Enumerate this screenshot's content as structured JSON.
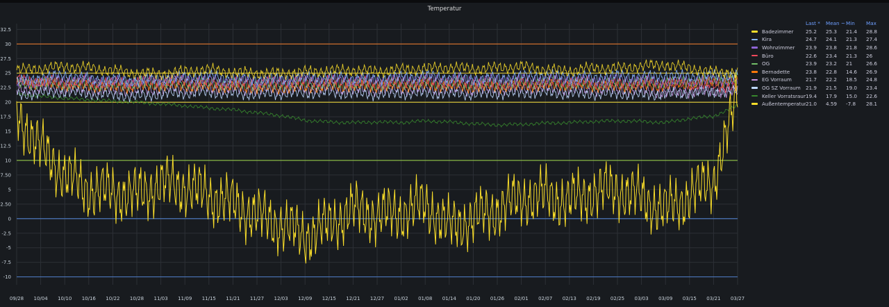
{
  "panel": {
    "title": "Temperatur"
  },
  "colors": {
    "background": "#181b1f",
    "grid": "#2c3036",
    "tick_text": "#c7d0d9",
    "legend_header": "#6e9fff"
  },
  "legend_columns": [
    "Last *",
    "Mean ~",
    "Min",
    "Max"
  ],
  "chart_data": {
    "type": "line",
    "title": "Temperatur",
    "xlabel": "",
    "ylabel": "",
    "ylim": [
      -11,
      33.5
    ],
    "grid": true,
    "legend_placement": "right",
    "xticks": [
      "09/28",
      "10/04",
      "10/10",
      "10/16",
      "10/22",
      "10/28",
      "11/03",
      "11/09",
      "11/15",
      "11/21",
      "11/27",
      "12/03",
      "12/09",
      "12/15",
      "12/21",
      "12/27",
      "01/02",
      "01/08",
      "01/14",
      "01/20",
      "01/26",
      "02/01",
      "02/07",
      "02/13",
      "02/19",
      "02/25",
      "03/03",
      "03/09",
      "03/15",
      "03/21",
      "03/27"
    ],
    "yticks": [
      "32.5",
      "30",
      "27.5",
      "25",
      "22.5",
      "20",
      "17.5",
      "15",
      "12.5",
      "10",
      "7.50",
      "5",
      "2.50",
      "0",
      "-2.5",
      "-5",
      "-7.5",
      "-10"
    ],
    "threshold_lines": [
      {
        "value": 30,
        "color": "#e0752d"
      },
      {
        "value": 25,
        "color": "#e8d23b"
      },
      {
        "value": 20,
        "color": "#e8d23b"
      },
      {
        "value": 10,
        "color": "#96c94a"
      },
      {
        "value": 0,
        "color": "#4f7ecb"
      },
      {
        "value": -10,
        "color": "#4f7ecb"
      }
    ],
    "series": [
      {
        "name": "Badezimmer",
        "color": "#fade2a",
        "last": "25.2",
        "mean": "25.3",
        "min": "21.4",
        "max": "28.8",
        "values": [
          25.5,
          25.8,
          26.1,
          25.9,
          25.4,
          25.0,
          24.8,
          25.3,
          25.6,
          25.1,
          25.0,
          24.9,
          25.2,
          25.4,
          25.5,
          25.3,
          25.6,
          25.8,
          26.0,
          25.7,
          25.9,
          26.1,
          25.6,
          25.4,
          25.9,
          25.8,
          26.2,
          26.4,
          25.9,
          25.1,
          25.2
        ]
      },
      {
        "name": "Kira",
        "color": "#8ab8ff",
        "last": "24.7",
        "mean": "24.1",
        "min": "21.3",
        "max": "27.4",
        "values": [
          23.5,
          24.2,
          24.6,
          24.0,
          23.8,
          23.7,
          24.0,
          24.3,
          24.5,
          24.1,
          23.9,
          24.0,
          24.2,
          24.4,
          24.1,
          24.0,
          24.3,
          24.5,
          24.2,
          24.0,
          24.1,
          24.4,
          24.6,
          24.3,
          24.2,
          24.5,
          24.3,
          24.6,
          24.4,
          24.5,
          24.7
        ]
      },
      {
        "name": "Wohnzimmer",
        "color": "#8f65d6",
        "last": "23.9",
        "mean": "23.8",
        "min": "21.8",
        "max": "28.6",
        "values": [
          23.2,
          23.6,
          23.9,
          23.8,
          23.5,
          23.7,
          23.9,
          24.0,
          23.8,
          23.7,
          23.6,
          23.8,
          24.0,
          23.9,
          23.8,
          23.7,
          23.9,
          24.1,
          23.9,
          23.8,
          23.8,
          23.9,
          24.0,
          23.8,
          23.7,
          23.9,
          23.8,
          23.6,
          23.7,
          23.8,
          23.9
        ]
      },
      {
        "name": "Büro",
        "color": "#f2495c",
        "last": "22.6",
        "mean": "23.4",
        "min": "21.3",
        "max": "26",
        "values": [
          23.8,
          23.6,
          23.5,
          23.4,
          23.3,
          23.4,
          23.5,
          23.6,
          23.3,
          23.2,
          23.3,
          23.4,
          23.5,
          23.6,
          23.4,
          23.3,
          23.4,
          23.5,
          23.4,
          23.3,
          23.2,
          23.3,
          23.4,
          23.5,
          23.3,
          23.2,
          23.4,
          23.3,
          23.2,
          22.9,
          22.6
        ]
      },
      {
        "name": "OG",
        "color": "#73bf69",
        "last": "23.9",
        "mean": "23.2",
        "min": "21",
        "max": "26.6",
        "values": [
          23.0,
          23.3,
          23.2,
          23.1,
          23.0,
          23.1,
          23.2,
          23.3,
          23.2,
          23.1,
          23.0,
          23.1,
          23.3,
          23.2,
          23.1,
          23.0,
          23.2,
          23.3,
          23.2,
          23.1,
          23.2,
          23.3,
          23.4,
          23.2,
          23.1,
          23.2,
          23.3,
          23.4,
          23.5,
          23.7,
          23.9
        ]
      },
      {
        "name": "Bernadette",
        "color": "#ff780a",
        "last": "23.8",
        "mean": "22.8",
        "min": "14.6",
        "max": "26.9",
        "values": [
          23.5,
          23.3,
          23.0,
          22.8,
          22.6,
          22.7,
          22.9,
          22.8,
          22.7,
          22.6,
          22.5,
          22.4,
          22.6,
          22.7,
          22.8,
          22.7,
          22.8,
          22.9,
          22.8,
          22.6,
          22.7,
          22.8,
          22.9,
          23.0,
          22.8,
          22.7,
          22.8,
          22.9,
          23.2,
          23.5,
          23.8
        ]
      },
      {
        "name": "EG Vorraum",
        "color": "#ca95e5",
        "last": "21.7",
        "mean": "22.2",
        "min": "18.5",
        "max": "24.8",
        "values": [
          22.0,
          22.3,
          22.4,
          22.2,
          22.1,
          22.0,
          22.2,
          22.3,
          22.4,
          22.2,
          22.1,
          22.2,
          22.3,
          22.4,
          22.2,
          22.1,
          22.2,
          22.3,
          22.2,
          22.1,
          22.2,
          22.3,
          22.4,
          22.2,
          22.1,
          22.2,
          22.0,
          21.6,
          21.8,
          21.9,
          21.7
        ]
      },
      {
        "name": "OG SZ Vorraum",
        "color": "#c0d8ff",
        "last": "21.9",
        "mean": "21.5",
        "min": "19.0",
        "max": "23.4",
        "values": [
          21.2,
          21.6,
          21.8,
          21.5,
          21.3,
          21.0,
          21.4,
          21.6,
          21.7,
          21.5,
          21.4,
          21.5,
          21.6,
          21.7,
          21.5,
          21.4,
          21.5,
          21.6,
          21.5,
          21.4,
          21.5,
          21.6,
          21.7,
          21.5,
          21.4,
          21.5,
          21.3,
          21.4,
          21.6,
          21.8,
          21.9
        ]
      },
      {
        "name": "Keller Vorratsraum",
        "color": "#37872d",
        "last": "19.4",
        "mean": "17.9",
        "min": "15.0",
        "max": "22.6",
        "values": [
          21.5,
          21.0,
          20.7,
          20.4,
          20.2,
          20.0,
          19.7,
          19.4,
          19.0,
          18.7,
          18.2,
          17.7,
          16.9,
          16.6,
          16.5,
          16.6,
          16.5,
          16.8,
          16.6,
          16.3,
          16.1,
          16.2,
          16.4,
          16.5,
          16.7,
          16.8,
          16.7,
          16.5,
          17.2,
          17.6,
          19.4
        ]
      },
      {
        "name": "Außentemperatur",
        "color": "#fade2a",
        "last": "21.0",
        "mean": "4.59",
        "min": "-7.8",
        "max": "28.1",
        "values": [
          18.0,
          12.0,
          7.5,
          5.0,
          4.5,
          4.0,
          6.0,
          5.5,
          4.0,
          2.5,
          0.5,
          -1.0,
          -3.0,
          -1.0,
          1.5,
          0.5,
          1.0,
          2.5,
          -1.5,
          0.0,
          1.5,
          3.5,
          4.0,
          3.0,
          4.5,
          5.0,
          3.5,
          1.5,
          4.0,
          6.5,
          21.0
        ]
      }
    ]
  }
}
